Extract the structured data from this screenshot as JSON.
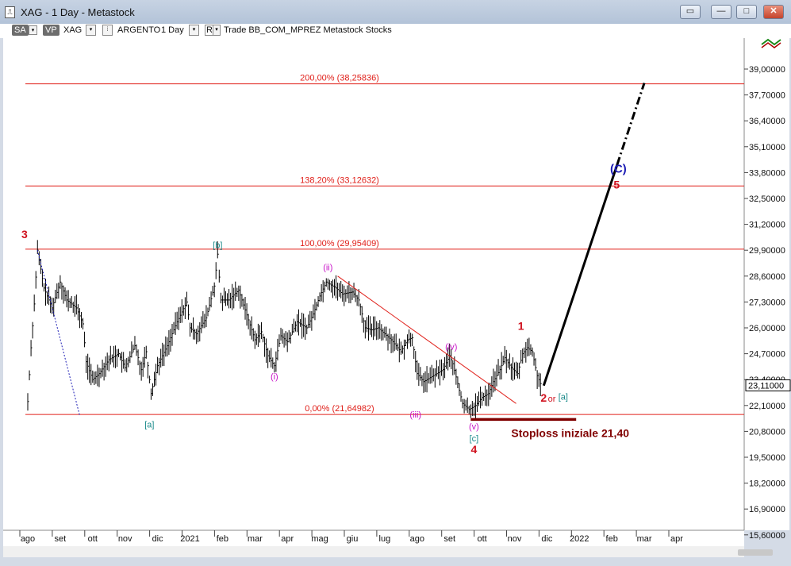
{
  "window": {
    "title": "XAG - 1 Day - Metastock",
    "buttons": [
      "restore-icon",
      "minimize-icon",
      "maximize-icon",
      "close-icon"
    ]
  },
  "toolbar": {
    "sa_label": "SA",
    "vp_label": "VP",
    "symbol": "XAG",
    "name": "ARGENTO",
    "period": "1 Day",
    "r_label": "R",
    "info": "Trade  BB_COM_MPREZ  Metastock  Stocks"
  },
  "colors": {
    "fib_line": "#e0201a",
    "price_bars": "#000000",
    "wave_red": "#d0121f",
    "wave_blue": "#1a1ab4",
    "wave_teal": "#1a8a8a",
    "wave_magenta": "#c813c8",
    "stoploss": "#800000",
    "accent_blue": "#3060c0"
  },
  "chart_data": {
    "type": "bar",
    "symbol": "XAG",
    "timeframe": "1 Day",
    "x_labels": [
      "ago",
      "set",
      "ott",
      "nov",
      "dic",
      "2021",
      "feb",
      "mar",
      "apr",
      "mag",
      "giu",
      "lug",
      "ago",
      "set",
      "ott",
      "nov",
      "dic",
      "2022",
      "feb",
      "mar",
      "apr"
    ],
    "y_ticks": [
      "39,00000",
      "37,70000",
      "36,40000",
      "35,10000",
      "33,80000",
      "32,50000",
      "31,20000",
      "29,90000",
      "28,60000",
      "27,30000",
      "26,00000",
      "24,70000",
      "23,40000",
      "22,10000",
      "20,80000",
      "19,50000",
      "18,20000",
      "16,90000",
      "15,60000"
    ],
    "ylim": [
      15.1,
      40.1
    ],
    "last_price": "23,11000",
    "fib_levels": [
      {
        "label": "200,00% (38,25836)",
        "value": 38.25836
      },
      {
        "label": "138,20% (33,12632)",
        "value": 33.12632
      },
      {
        "label": "100,00% (29,95409)",
        "value": 29.95409
      },
      {
        "label": "0,00% (21,64982)",
        "value": 21.64982
      }
    ],
    "price_path": [
      {
        "month": 0,
        "price": 22.3
      },
      {
        "month": 0.1,
        "price": 25.0
      },
      {
        "month": 0.2,
        "price": 27.2
      },
      {
        "month": 0.3,
        "price": 29.9
      },
      {
        "month": 0.5,
        "price": 28.0
      },
      {
        "month": 0.75,
        "price": 27.0
      },
      {
        "month": 1.0,
        "price": 28.3
      },
      {
        "month": 1.2,
        "price": 27.4
      },
      {
        "month": 1.5,
        "price": 27.0
      },
      {
        "month": 1.7,
        "price": 26.2
      },
      {
        "month": 1.8,
        "price": 24.3
      },
      {
        "month": 2.0,
        "price": 23.4
      },
      {
        "month": 2.2,
        "price": 23.7
      },
      {
        "month": 2.5,
        "price": 24.4
      },
      {
        "month": 2.8,
        "price": 24.7
      },
      {
        "month": 3.0,
        "price": 24.0
      },
      {
        "month": 3.3,
        "price": 25.1
      },
      {
        "month": 3.5,
        "price": 23.9
      },
      {
        "month": 3.65,
        "price": 24.8
      },
      {
        "month": 3.8,
        "price": 22.7
      },
      {
        "month": 4.0,
        "price": 24.1
      },
      {
        "month": 4.3,
        "price": 25.1
      },
      {
        "month": 4.6,
        "price": 26.3
      },
      {
        "month": 4.9,
        "price": 27.3
      },
      {
        "month": 5.0,
        "price": 26.0
      },
      {
        "month": 5.2,
        "price": 25.7
      },
      {
        "month": 5.5,
        "price": 26.5
      },
      {
        "month": 5.75,
        "price": 28.1
      },
      {
        "month": 5.85,
        "price": 29.7
      },
      {
        "month": 5.95,
        "price": 27.4
      },
      {
        "month": 6.2,
        "price": 27.4
      },
      {
        "month": 6.5,
        "price": 27.9
      },
      {
        "month": 6.7,
        "price": 26.9
      },
      {
        "month": 7.0,
        "price": 25.4
      },
      {
        "month": 7.2,
        "price": 25.8
      },
      {
        "month": 7.4,
        "price": 24.6
      },
      {
        "month": 7.6,
        "price": 24.1
      },
      {
        "month": 7.8,
        "price": 25.6
      },
      {
        "month": 8.0,
        "price": 25.3
      },
      {
        "month": 8.3,
        "price": 26.3
      },
      {
        "month": 8.6,
        "price": 26.0
      },
      {
        "month": 8.8,
        "price": 26.7
      },
      {
        "month": 9.0,
        "price": 27.6
      },
      {
        "month": 9.2,
        "price": 28.3
      },
      {
        "month": 9.5,
        "price": 28.0
      },
      {
        "month": 9.7,
        "price": 27.7
      },
      {
        "month": 10.0,
        "price": 27.8
      },
      {
        "month": 10.2,
        "price": 27.4
      },
      {
        "month": 10.4,
        "price": 26.0
      },
      {
        "month": 10.6,
        "price": 25.9
      },
      {
        "month": 10.8,
        "price": 26.0
      },
      {
        "month": 11.0,
        "price": 25.7
      },
      {
        "month": 11.2,
        "price": 25.4
      },
      {
        "month": 11.5,
        "price": 24.8
      },
      {
        "month": 11.7,
        "price": 25.4
      },
      {
        "month": 11.85,
        "price": 25.5
      },
      {
        "month": 12.0,
        "price": 23.7
      },
      {
        "month": 12.2,
        "price": 23.3
      },
      {
        "month": 12.5,
        "price": 23.6
      },
      {
        "month": 12.8,
        "price": 23.9
      },
      {
        "month": 13.0,
        "price": 24.6
      },
      {
        "month": 13.1,
        "price": 24.2
      },
      {
        "month": 13.25,
        "price": 23.2
      },
      {
        "month": 13.4,
        "price": 22.2
      },
      {
        "month": 13.6,
        "price": 21.9
      },
      {
        "month": 13.8,
        "price": 22.1
      },
      {
        "month": 14.0,
        "price": 22.5
      },
      {
        "month": 14.2,
        "price": 22.7
      },
      {
        "month": 14.35,
        "price": 23.3
      },
      {
        "month": 14.55,
        "price": 23.9
      },
      {
        "month": 14.7,
        "price": 24.5
      },
      {
        "month": 14.9,
        "price": 24.0
      },
      {
        "month": 15.1,
        "price": 23.7
      },
      {
        "month": 15.25,
        "price": 24.7
      },
      {
        "month": 15.4,
        "price": 25.0
      },
      {
        "month": 15.55,
        "price": 24.8
      },
      {
        "month": 15.7,
        "price": 23.6
      },
      {
        "month": 15.8,
        "price": 23.2
      },
      {
        "month": 15.85,
        "price": 23.1
      }
    ],
    "projection": {
      "from": {
        "month": 15.9,
        "price": 23.1
      },
      "to": {
        "month": 19.0,
        "price": 38.3
      }
    },
    "stoploss": {
      "label": "Stoploss iniziale 21,40",
      "value": 21.4
    },
    "wave_labels": [
      {
        "text": "3",
        "month": -0.1,
        "price": 30.5,
        "color": "red"
      },
      {
        "text": "[a]",
        "month": 3.75,
        "price": 21.0,
        "color": "teal"
      },
      {
        "text": "[b]",
        "month": 5.85,
        "price": 30.0,
        "color": "teal"
      },
      {
        "text": "(i)",
        "month": 7.6,
        "price": 23.4,
        "color": "magenta"
      },
      {
        "text": "(ii)",
        "month": 9.25,
        "price": 28.9,
        "color": "magenta"
      },
      {
        "text": "(iii)",
        "month": 11.95,
        "price": 21.5,
        "color": "magenta"
      },
      {
        "text": "(iv)",
        "month": 13.05,
        "price": 24.9,
        "color": "magenta"
      },
      {
        "text": "(v)",
        "month": 13.75,
        "price": 20.9,
        "color": "magenta"
      },
      {
        "text": "[c]",
        "month": 13.75,
        "price": 20.3,
        "color": "teal"
      },
      {
        "text": "4",
        "month": 13.75,
        "price": 19.7,
        "color": "red"
      },
      {
        "text": "1",
        "month": 15.2,
        "price": 25.9,
        "color": "red"
      },
      {
        "text": "2",
        "month": 15.9,
        "price": 22.3,
        "color": "red"
      },
      {
        "text": "or",
        "month": 16.15,
        "price": 22.3,
        "color": "red"
      },
      {
        "text": "[a]",
        "month": 16.5,
        "price": 22.4,
        "color": "teal"
      },
      {
        "text": "(C)",
        "month": 18.2,
        "price": 33.8,
        "color": "blue"
      },
      {
        "text": "5",
        "month": 18.15,
        "price": 33.0,
        "color": "red"
      }
    ]
  }
}
